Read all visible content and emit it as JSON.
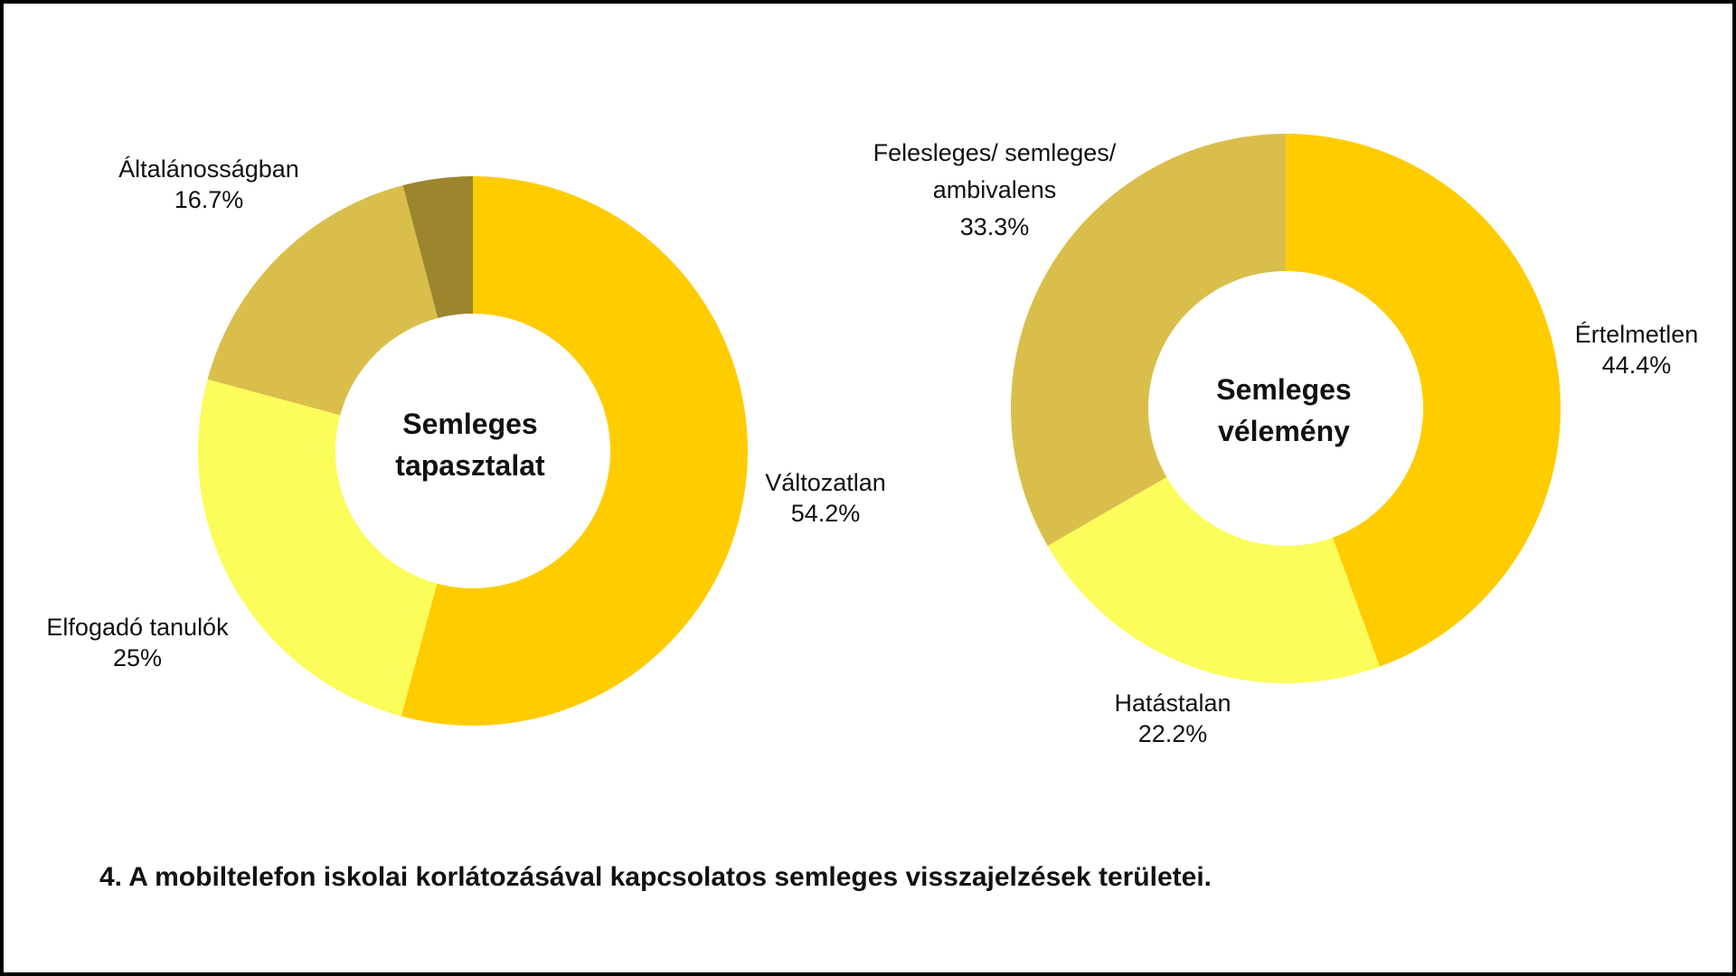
{
  "chart_data": [
    {
      "type": "pie",
      "variant": "donut",
      "center_label": "Semleges tapasztalat",
      "slices": [
        {
          "label": "Változatlan",
          "value": 54.2,
          "value_text": "54.2%",
          "color": "#FFCC00"
        },
        {
          "label": "Elfogadó tanulók",
          "value": 25,
          "value_text": "25%",
          "color": "#FCFC5A"
        },
        {
          "label": "Általánosságban",
          "value": 16.7,
          "value_text": "16.7%",
          "color": "#DABE4B"
        },
        {
          "label": "",
          "value": 4.1,
          "value_text": "",
          "color": "#9C852D"
        }
      ]
    },
    {
      "type": "pie",
      "variant": "donut",
      "center_label": "Semleges vélemény",
      "slices": [
        {
          "label": "Értelmetlen",
          "value": 44.4,
          "value_text": "44.4%",
          "color": "#FFCC00"
        },
        {
          "label": "Hatástalan",
          "value": 22.2,
          "value_text": "22.2%",
          "color": "#FCFC5A"
        },
        {
          "label": "Felesleges/ semleges/ ambivalens",
          "value": 33.3,
          "value_text": "33.3%",
          "color": "#DABE4B"
        }
      ]
    }
  ],
  "caption": "4. A mobiltelefon iskolai korlátozásával kapcsolatos semleges visszajelzések területei."
}
